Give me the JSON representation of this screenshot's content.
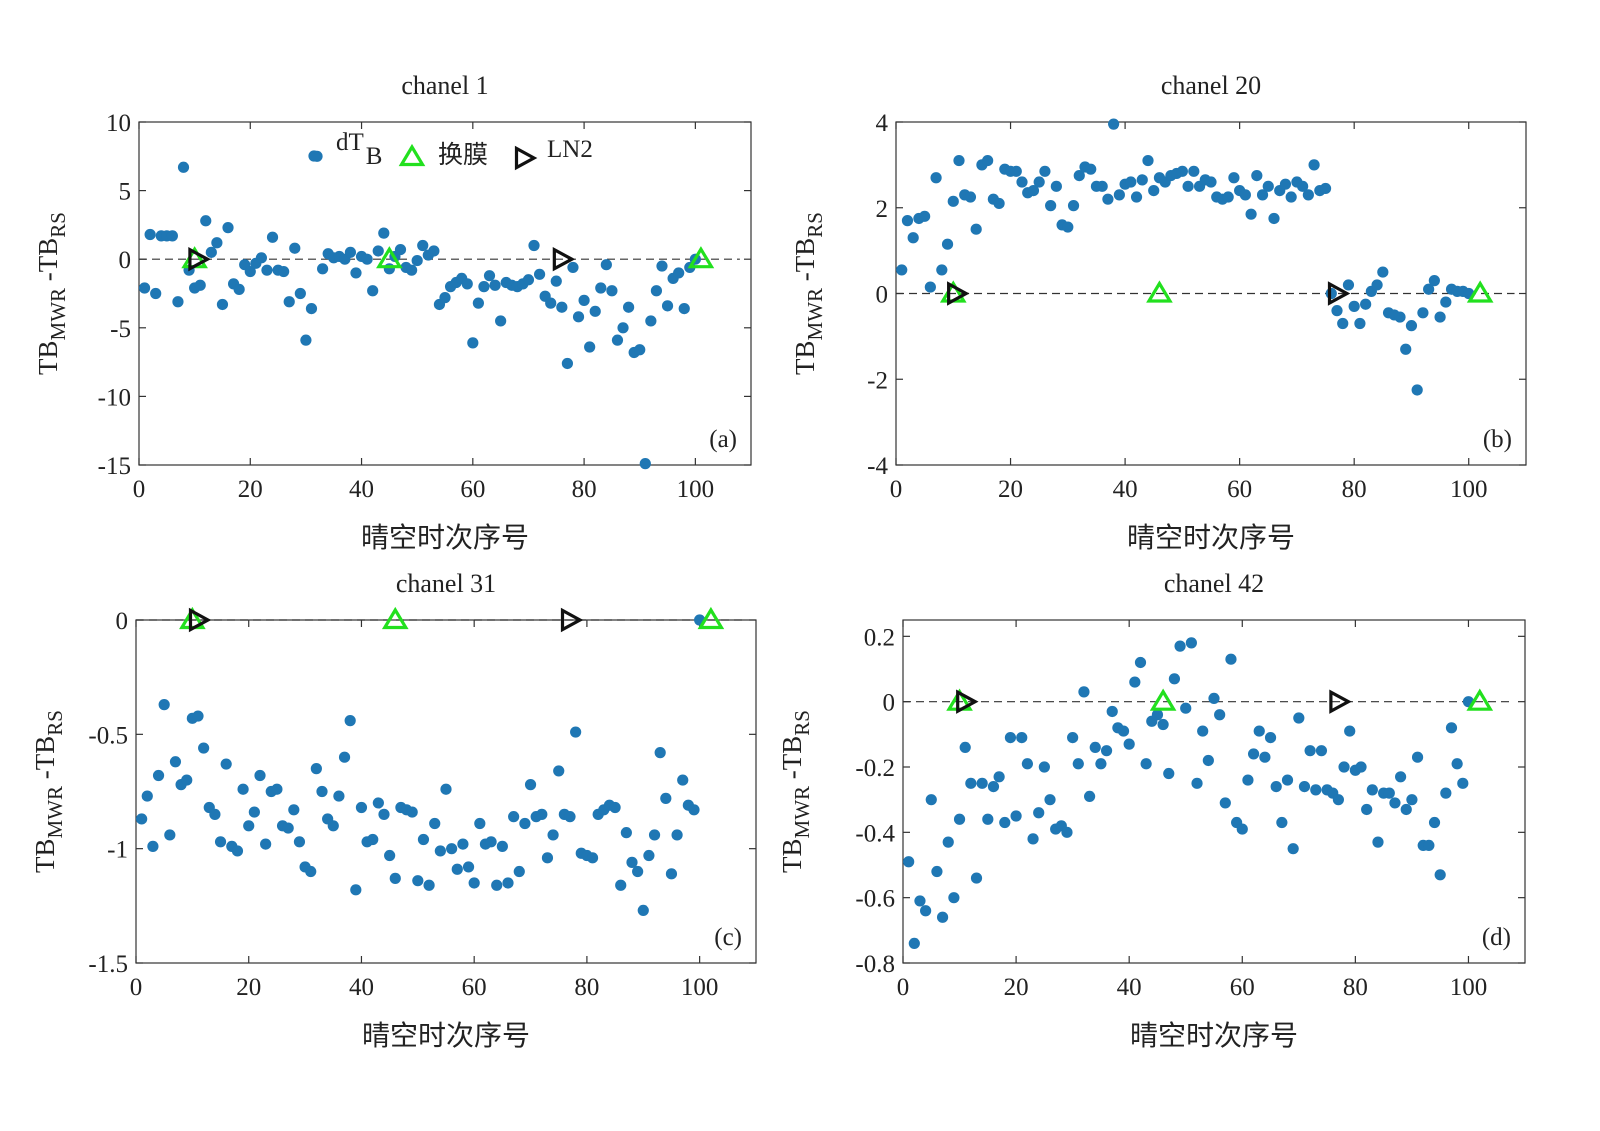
{
  "figure": {
    "colors": {
      "dot": "#1f77b4",
      "membrane": "#22e01e",
      "ln2": "#111111",
      "axis": "#333333",
      "zero_line": "#333333"
    }
  },
  "legend": {
    "dt_prefix": "dT",
    "dt_sub": "B",
    "membrane": "换膜",
    "ln2": "LN2"
  },
  "chart_data": [
    {
      "type": "scatter",
      "title": "chanel 1",
      "panel_label": "(a)",
      "xlabel": "晴空时次序号",
      "ylabel": {
        "prefix": "TB",
        "sub1": "MWR",
        "mid": " -TB",
        "sub2": "RS"
      },
      "xlim": [
        0,
        110
      ],
      "ylim": [
        -15,
        10
      ],
      "xticks": [
        0,
        20,
        40,
        60,
        80,
        100
      ],
      "yticks": [
        -15,
        -10,
        -5,
        0,
        5,
        10
      ],
      "zero_line": true,
      "grid": false,
      "legend": "top",
      "series": [
        {
          "name": "dT_B",
          "x": [
            1,
            2,
            3,
            4,
            5,
            6,
            7,
            8,
            9,
            10,
            11,
            12,
            13,
            14,
            15,
            16,
            17,
            18,
            19,
            20,
            21,
            22,
            23,
            24,
            25,
            26,
            27,
            28,
            29,
            30,
            31,
            32,
            33,
            34,
            35,
            36,
            37,
            38,
            39,
            40,
            41,
            42,
            43,
            44,
            45,
            46,
            47,
            48,
            49,
            50,
            51,
            52,
            53,
            54,
            55,
            56,
            57,
            58,
            59,
            60,
            61,
            62,
            63,
            64,
            65,
            66,
            67,
            68,
            69,
            70,
            71,
            72,
            73,
            74,
            75,
            76,
            77,
            78,
            79,
            80,
            81,
            82,
            83,
            84,
            85,
            86,
            87,
            88,
            89,
            90,
            91,
            92,
            93,
            94,
            95,
            96,
            97,
            98,
            99,
            100
          ],
          "y": [
            -2.1,
            1.8,
            -2.5,
            1.7,
            1.7,
            1.7,
            -3.1,
            6.7,
            -0.8,
            -2.1,
            -1.9,
            2.8,
            0.5,
            1.2,
            -3.3,
            2.3,
            -1.8,
            -2.2,
            -0.4,
            -0.9,
            -0.3,
            0.1,
            -0.8,
            1.6,
            -0.8,
            -0.9,
            -3.1,
            0.8,
            -2.5,
            -5.9,
            -3.6,
            7.5,
            -0.7,
            0.4,
            0.1,
            0.2,
            0.0,
            0.5,
            -1.0,
            0.2,
            0.0,
            -2.3,
            0.6,
            1.9,
            -0.7,
            0.2,
            0.7,
            -0.6,
            -0.8,
            -0.1,
            1.0,
            0.3,
            0.6,
            -3.3,
            -2.8,
            -2.0,
            -1.7,
            -1.4,
            -1.8,
            -6.1,
            -3.2,
            -2.0,
            -1.2,
            -1.9,
            -4.5,
            -1.7,
            -1.9,
            -2.0,
            -1.8,
            -1.5,
            1.0,
            -1.1,
            -2.7,
            -3.2,
            -1.6,
            -3.5,
            -7.6,
            -0.6,
            -4.2,
            -3.0,
            -6.4,
            -3.8,
            -2.1,
            -0.4,
            -2.3,
            -5.9,
            -5.0,
            -3.5,
            -6.8,
            -6.6,
            -14.9,
            -4.5,
            -2.3,
            -0.5,
            -3.4,
            -1.4,
            -1.0,
            -3.6,
            -0.6,
            0.0
          ]
        },
        {
          "name": "换膜",
          "x": [
            10,
            45,
            101
          ],
          "y": [
            0,
            0,
            0
          ]
        },
        {
          "name": "LN2",
          "x": [
            10.5,
            76
          ],
          "y": [
            0,
            0
          ]
        }
      ]
    },
    {
      "type": "scatter",
      "title": "chanel 20",
      "panel_label": "(b)",
      "xlabel": "晴空时次序号",
      "ylabel": {
        "prefix": "TB",
        "sub1": "MWR",
        "mid": " -TB",
        "sub2": "RS"
      },
      "xlim": [
        0,
        110
      ],
      "ylim": [
        -4,
        4
      ],
      "xticks": [
        0,
        20,
        40,
        60,
        80,
        100
      ],
      "yticks": [
        -4,
        -2,
        0,
        2,
        4
      ],
      "zero_line": true,
      "grid": false,
      "series": [
        {
          "name": "dT_B",
          "x": [
            1,
            2,
            3,
            4,
            5,
            6,
            7,
            8,
            9,
            10,
            11,
            12,
            13,
            14,
            15,
            16,
            17,
            18,
            19,
            20,
            21,
            22,
            23,
            24,
            25,
            26,
            27,
            28,
            29,
            30,
            31,
            32,
            33,
            34,
            35,
            36,
            37,
            38,
            39,
            40,
            41,
            42,
            43,
            44,
            45,
            46,
            47,
            48,
            49,
            50,
            51,
            52,
            53,
            54,
            55,
            56,
            57,
            58,
            59,
            60,
            61,
            62,
            63,
            64,
            65,
            66,
            67,
            68,
            69,
            70,
            71,
            72,
            73,
            74,
            75,
            76,
            77,
            78,
            79,
            80,
            81,
            82,
            83,
            84,
            85,
            86,
            87,
            88,
            89,
            90,
            91,
            92,
            93,
            94,
            95,
            96,
            97,
            98,
            99,
            100
          ],
          "y": [
            0.55,
            1.7,
            1.3,
            1.75,
            1.8,
            0.15,
            2.7,
            0.55,
            1.15,
            2.15,
            3.1,
            2.3,
            2.25,
            1.5,
            3.0,
            3.1,
            2.2,
            2.1,
            2.9,
            2.85,
            2.85,
            2.6,
            2.35,
            2.4,
            2.6,
            2.85,
            2.05,
            2.5,
            1.6,
            1.55,
            2.05,
            2.75,
            2.95,
            2.9,
            2.5,
            2.5,
            2.2,
            3.95,
            2.3,
            2.55,
            2.6,
            2.25,
            2.65,
            3.1,
            2.4,
            2.7,
            2.6,
            2.75,
            2.8,
            2.85,
            2.5,
            2.85,
            2.5,
            2.65,
            2.6,
            2.25,
            2.2,
            2.25,
            2.7,
            2.4,
            2.3,
            1.85,
            2.75,
            2.3,
            2.5,
            1.75,
            2.4,
            2.55,
            2.25,
            2.6,
            2.5,
            2.3,
            3.0,
            2.4,
            2.45,
            0.0,
            -0.4,
            -0.7,
            0.2,
            -0.3,
            -0.7,
            -0.25,
            0.05,
            0.2,
            0.5,
            -0.45,
            -0.5,
            -0.55,
            -1.3,
            -0.75,
            -2.25,
            -0.45,
            0.1,
            0.3,
            -0.55,
            -0.2,
            0.1,
            0.05,
            0.05,
            0.0
          ]
        },
        {
          "name": "换膜",
          "x": [
            10,
            46,
            102
          ],
          "y": [
            0,
            0,
            0
          ]
        },
        {
          "name": "LN2",
          "x": [
            10.5,
            77
          ],
          "y": [
            0,
            0
          ]
        }
      ]
    },
    {
      "type": "scatter",
      "title": "chanel 31",
      "panel_label": "(c)",
      "xlabel": "晴空时次序号",
      "ylabel": {
        "prefix": "TB",
        "sub1": "MWR",
        "mid": " -TB",
        "sub2": "RS"
      },
      "xlim": [
        0,
        110
      ],
      "ylim": [
        -1.5,
        0
      ],
      "xticks": [
        0,
        20,
        40,
        60,
        80,
        100
      ],
      "yticks": [
        -1.5,
        -1,
        -0.5,
        0
      ],
      "zero_line": true,
      "grid": false,
      "series": [
        {
          "name": "dT_B",
          "x": [
            1,
            2,
            3,
            4,
            5,
            6,
            7,
            8,
            9,
            10,
            11,
            12,
            13,
            14,
            15,
            16,
            17,
            18,
            19,
            20,
            21,
            22,
            23,
            24,
            25,
            26,
            27,
            28,
            29,
            30,
            31,
            32,
            33,
            34,
            35,
            36,
            37,
            38,
            39,
            40,
            41,
            42,
            43,
            44,
            45,
            46,
            47,
            48,
            49,
            50,
            51,
            52,
            53,
            54,
            55,
            56,
            57,
            58,
            59,
            60,
            61,
            62,
            63,
            64,
            65,
            66,
            67,
            68,
            69,
            70,
            71,
            72,
            73,
            74,
            75,
            76,
            77,
            78,
            79,
            80,
            81,
            82,
            83,
            84,
            85,
            86,
            87,
            88,
            89,
            90,
            91,
            92,
            93,
            94,
            95,
            96,
            97,
            98,
            99,
            100
          ],
          "y": [
            -0.87,
            -0.77,
            -0.99,
            -0.68,
            -0.37,
            -0.94,
            -0.62,
            -0.72,
            -0.7,
            -0.43,
            -0.42,
            -0.56,
            -0.82,
            -0.85,
            -0.97,
            -0.63,
            -0.99,
            -1.01,
            -0.74,
            -0.9,
            -0.84,
            -0.68,
            -0.98,
            -0.75,
            -0.74,
            -0.9,
            -0.91,
            -0.83,
            -0.97,
            -1.08,
            -1.1,
            -0.65,
            -0.75,
            -0.87,
            -0.9,
            -0.77,
            -0.6,
            -0.44,
            -1.18,
            -0.82,
            -0.97,
            -0.96,
            -0.8,
            -0.85,
            -1.03,
            -1.13,
            -0.82,
            -0.83,
            -0.84,
            -1.14,
            -0.96,
            -1.16,
            -0.89,
            -1.01,
            -0.74,
            -1.0,
            -1.09,
            -0.98,
            -1.08,
            -1.15,
            -0.89,
            -0.98,
            -0.97,
            -1.16,
            -0.99,
            -1.15,
            -0.86,
            -1.1,
            -0.89,
            -0.72,
            -0.86,
            -0.85,
            -1.04,
            -0.94,
            -0.66,
            -0.85,
            -0.86,
            -0.49,
            -1.02,
            -1.03,
            -1.04,
            -0.85,
            -0.83,
            -0.81,
            -0.82,
            -1.16,
            -0.93,
            -1.06,
            -1.1,
            -1.27,
            -1.03,
            -0.94,
            -0.58,
            -0.78,
            -1.11,
            -0.94,
            -0.7,
            -0.81,
            -0.83,
            0.0
          ]
        },
        {
          "name": "换膜",
          "x": [
            10,
            46,
            102
          ],
          "y": [
            0,
            0,
            0
          ]
        },
        {
          "name": "LN2",
          "x": [
            11,
            77
          ],
          "y": [
            0,
            0
          ]
        }
      ]
    },
    {
      "type": "scatter",
      "title": "chanel 42",
      "panel_label": "(d)",
      "xlabel": "晴空时次序号",
      "ylabel": {
        "prefix": "TB",
        "sub1": "MWR",
        "mid": " -TB",
        "sub2": "RS"
      },
      "xlim": [
        0,
        110
      ],
      "ylim": [
        -0.8,
        0.25
      ],
      "xticks": [
        0,
        20,
        40,
        60,
        80,
        100
      ],
      "yticks": [
        -0.8,
        -0.6,
        -0.4,
        -0.2,
        0,
        0.2
      ],
      "zero_line": true,
      "grid": false,
      "series": [
        {
          "name": "dT_B",
          "x": [
            1,
            2,
            3,
            4,
            5,
            6,
            7,
            8,
            9,
            10,
            11,
            12,
            13,
            14,
            15,
            16,
            17,
            18,
            19,
            20,
            21,
            22,
            23,
            24,
            25,
            26,
            27,
            28,
            29,
            30,
            31,
            32,
            33,
            34,
            35,
            36,
            37,
            38,
            39,
            40,
            41,
            42,
            43,
            44,
            45,
            46,
            47,
            48,
            49,
            50,
            51,
            52,
            53,
            54,
            55,
            56,
            57,
            58,
            59,
            60,
            61,
            62,
            63,
            64,
            65,
            66,
            67,
            68,
            69,
            70,
            71,
            72,
            73,
            74,
            75,
            76,
            77,
            78,
            79,
            80,
            81,
            82,
            83,
            84,
            85,
            86,
            87,
            88,
            89,
            90,
            91,
            92,
            93,
            94,
            95,
            96,
            97,
            98,
            99,
            100
          ],
          "y": [
            -0.49,
            -0.74,
            -0.61,
            -0.64,
            -0.3,
            -0.52,
            -0.66,
            -0.43,
            -0.6,
            -0.36,
            -0.14,
            -0.25,
            -0.54,
            -0.25,
            -0.36,
            -0.26,
            -0.23,
            -0.37,
            -0.11,
            -0.35,
            -0.11,
            -0.19,
            -0.42,
            -0.34,
            -0.2,
            -0.3,
            -0.39,
            -0.38,
            -0.4,
            -0.11,
            -0.19,
            0.03,
            -0.29,
            -0.14,
            -0.19,
            -0.15,
            -0.03,
            -0.08,
            -0.09,
            -0.13,
            0.06,
            0.12,
            -0.19,
            -0.06,
            -0.04,
            -0.07,
            -0.22,
            0.07,
            0.17,
            -0.02,
            0.18,
            -0.25,
            -0.09,
            -0.18,
            0.01,
            -0.04,
            -0.31,
            0.13,
            -0.37,
            -0.39,
            -0.24,
            -0.16,
            -0.09,
            -0.17,
            -0.11,
            -0.26,
            -0.37,
            -0.24,
            -0.45,
            -0.05,
            -0.26,
            -0.15,
            -0.27,
            -0.15,
            -0.27,
            -0.28,
            -0.3,
            -0.2,
            -0.09,
            -0.21,
            -0.2,
            -0.33,
            -0.27,
            -0.43,
            -0.28,
            -0.28,
            -0.31,
            -0.23,
            -0.33,
            -0.3,
            -0.17,
            -0.44,
            -0.44,
            -0.37,
            -0.53,
            -0.28,
            -0.08,
            -0.19,
            -0.25,
            0.0
          ]
        },
        {
          "name": "换膜",
          "x": [
            10,
            46,
            102
          ],
          "y": [
            0,
            0,
            0
          ]
        },
        {
          "name": "LN2",
          "x": [
            11,
            77
          ],
          "y": [
            0,
            0
          ]
        }
      ]
    }
  ]
}
